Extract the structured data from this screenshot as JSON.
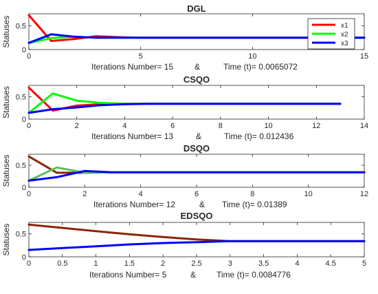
{
  "chart_data": [
    {
      "type": "line",
      "title": "DGL",
      "ylabel": "Statuses",
      "xlim": [
        0,
        15
      ],
      "ylim": [
        0,
        0.75
      ],
      "xticks": [
        "0",
        "5",
        "10",
        "15"
      ],
      "yticks": [
        "0",
        "0.5"
      ],
      "info": {
        "iterations_label": "Iterations Number= 15",
        "separator": "&",
        "time_label": "Time (t)=  0.0065072"
      },
      "x": [
        0,
        1,
        2,
        3,
        4,
        5,
        6,
        7,
        8,
        9,
        10,
        11,
        12,
        13,
        14,
        15
      ],
      "series": [
        {
          "name": "x1",
          "color": "#ff0000",
          "values": [
            0.72,
            0.18,
            0.22,
            0.28,
            0.26,
            0.25,
            0.25,
            0.25,
            0.25,
            0.25,
            0.25,
            0.25,
            0.25,
            0.25,
            0.25,
            0.25
          ]
        },
        {
          "name": "x2",
          "color": "#00ff00",
          "values": [
            0.14,
            0.24,
            0.27,
            0.25,
            0.25,
            0.25,
            0.25,
            0.25,
            0.25,
            0.25,
            0.25,
            0.25,
            0.25,
            0.25,
            0.25,
            0.25
          ]
        },
        {
          "name": "x3",
          "color": "#0000ff",
          "values": [
            0.14,
            0.32,
            0.27,
            0.25,
            0.25,
            0.25,
            0.25,
            0.25,
            0.25,
            0.25,
            0.25,
            0.25,
            0.25,
            0.25,
            0.25,
            0.25
          ]
        }
      ],
      "legend": {
        "position": "top-right",
        "entries": [
          "x1",
          "x2",
          "x3"
        ]
      }
    },
    {
      "type": "line",
      "title": "CSQO",
      "ylabel": "Statuses",
      "xlim": [
        0,
        14
      ],
      "ylim": [
        0,
        0.75
      ],
      "xticks": [
        "0",
        "2",
        "4",
        "6",
        "8",
        "10",
        "12",
        "14"
      ],
      "yticks": [
        "0",
        "0.5"
      ],
      "info": {
        "iterations_label": "Iterations Number= 13",
        "separator": "&",
        "time_label": "Time (t)=  0.012436"
      },
      "x": [
        0,
        1,
        2,
        3,
        4,
        5,
        6,
        7,
        8,
        9,
        10,
        11,
        12,
        13
      ],
      "series": [
        {
          "name": "x1",
          "color": "#ff0000",
          "values": [
            0.7,
            0.19,
            0.3,
            0.33,
            0.34,
            0.34,
            0.34,
            0.34,
            0.34,
            0.34,
            0.34,
            0.34,
            0.34,
            0.34
          ]
        },
        {
          "name": "x2",
          "color": "#00ff00",
          "values": [
            0.14,
            0.57,
            0.41,
            0.36,
            0.34,
            0.34,
            0.34,
            0.34,
            0.34,
            0.34,
            0.34,
            0.34,
            0.34,
            0.34
          ]
        },
        {
          "name": "x3",
          "color": "#0000ff",
          "values": [
            0.14,
            0.22,
            0.26,
            0.31,
            0.33,
            0.34,
            0.34,
            0.34,
            0.34,
            0.34,
            0.34,
            0.34,
            0.34,
            0.34
          ]
        }
      ]
    },
    {
      "type": "line",
      "title": "DSQO",
      "ylabel": "Statuses",
      "xlim": [
        0,
        12
      ],
      "ylim": [
        0,
        0.75
      ],
      "xticks": [
        "0",
        "2",
        "4",
        "6",
        "8",
        "10",
        "12"
      ],
      "yticks": [
        "0",
        "0.5"
      ],
      "info": {
        "iterations_label": "Iterations Number= 12",
        "separator": "&",
        "time_label": "Time (t)=  0.01389"
      },
      "x": [
        0,
        1,
        2,
        3,
        4,
        5,
        6,
        7,
        8,
        9,
        10,
        11,
        12
      ],
      "series": [
        {
          "name": "x1",
          "color": "#8b2500",
          "values": [
            0.7,
            0.33,
            0.33,
            0.34,
            0.34,
            0.34,
            0.34,
            0.34,
            0.34,
            0.34,
            0.34,
            0.34,
            0.34
          ]
        },
        {
          "name": "x2",
          "color": "#55c255",
          "values": [
            0.15,
            0.45,
            0.33,
            0.34,
            0.34,
            0.34,
            0.34,
            0.34,
            0.34,
            0.34,
            0.34,
            0.34,
            0.34
          ]
        },
        {
          "name": "x3",
          "color": "#0000ff",
          "values": [
            0.15,
            0.23,
            0.37,
            0.34,
            0.34,
            0.34,
            0.34,
            0.34,
            0.34,
            0.34,
            0.34,
            0.34,
            0.34
          ]
        }
      ]
    },
    {
      "type": "line",
      "title": "EDSQO",
      "ylabel": "Statuses",
      "xlim": [
        0,
        5
      ],
      "ylim": [
        0,
        0.75
      ],
      "xticks": [
        "0",
        "0.5",
        "1",
        "1.5",
        "2",
        "2.5",
        "3",
        "3.5",
        "4",
        "4.5",
        "5"
      ],
      "yticks": [
        "0",
        "0.5"
      ],
      "info": {
        "iterations_label": "Iterations Number= 5",
        "separator": "&",
        "time_label": "Time (t)=  0.0084776"
      },
      "x": [
        0,
        0.5,
        1,
        1.5,
        2,
        2.5,
        3,
        3.5,
        4,
        4.5,
        5
      ],
      "series": [
        {
          "name": "x1",
          "color": "#8b2500",
          "values": [
            0.7,
            0.63,
            0.56,
            0.49,
            0.43,
            0.38,
            0.34,
            0.34,
            0.34,
            0.34,
            0.34
          ]
        },
        {
          "name": "x3",
          "color": "#0000ff",
          "values": [
            0.15,
            0.19,
            0.23,
            0.27,
            0.3,
            0.32,
            0.34,
            0.34,
            0.34,
            0.34,
            0.34
          ]
        }
      ]
    }
  ]
}
